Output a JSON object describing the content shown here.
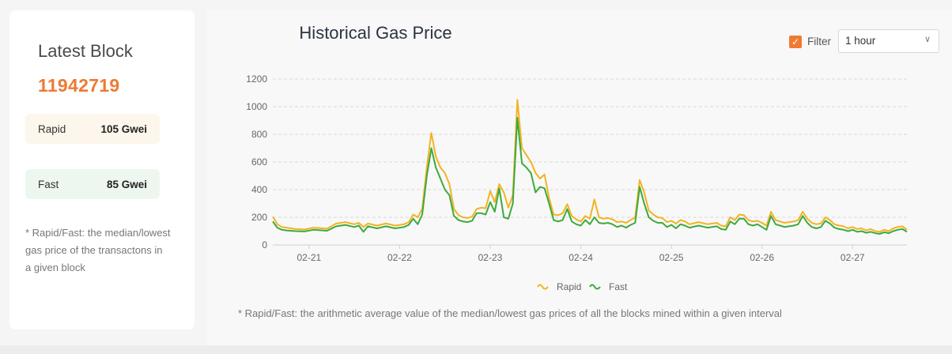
{
  "latest": {
    "title": "Latest Block",
    "block_number": "11942719",
    "rapid_label": "Rapid",
    "rapid_value": "105 Gwei",
    "fast_label": "Fast",
    "fast_value": "85 Gwei",
    "note": "* Rapid/Fast: the median/lowest gas price of the transactons in a given block"
  },
  "filter": {
    "label": "Filter",
    "checked": true,
    "selected": "1 hour"
  },
  "footnote": "* Rapid/Fast: the arithmetic average value of the median/lowest gas prices of all the blocks mined within a given interval",
  "colors": {
    "accent": "#ee7a33",
    "rapid": "#f2b322",
    "fast": "#3daa3d",
    "grid": "#d9d9d9"
  },
  "chart_data": {
    "type": "line",
    "title": "Historical Gas Price",
    "xlabel": "",
    "ylabel": "",
    "ylim": [
      0,
      1200
    ],
    "yticks": [
      0,
      200,
      400,
      600,
      800,
      1000,
      1200
    ],
    "xlim": [
      0,
      7.0
    ],
    "xticks": [
      {
        "x": 0.4,
        "label": "02-21"
      },
      {
        "x": 1.4,
        "label": "02-22"
      },
      {
        "x": 2.4,
        "label": "02-23"
      },
      {
        "x": 3.4,
        "label": "02-24"
      },
      {
        "x": 4.4,
        "label": "02-25"
      },
      {
        "x": 5.4,
        "label": "02-26"
      },
      {
        "x": 6.4,
        "label": "02-27"
      }
    ],
    "grid": true,
    "legend_position": "bottom",
    "series": [
      {
        "name": "Rapid",
        "points": [
          [
            0.0,
            205
          ],
          [
            0.05,
            150
          ],
          [
            0.1,
            130
          ],
          [
            0.15,
            125
          ],
          [
            0.25,
            115
          ],
          [
            0.35,
            112
          ],
          [
            0.45,
            125
          ],
          [
            0.55,
            120
          ],
          [
            0.6,
            118
          ],
          [
            0.7,
            155
          ],
          [
            0.8,
            165
          ],
          [
            0.9,
            150
          ],
          [
            0.95,
            160
          ],
          [
            1.0,
            130
          ],
          [
            1.05,
            155
          ],
          [
            1.15,
            140
          ],
          [
            1.25,
            155
          ],
          [
            1.35,
            140
          ],
          [
            1.45,
            150
          ],
          [
            1.5,
            165
          ],
          [
            1.55,
            220
          ],
          [
            1.6,
            200
          ],
          [
            1.65,
            260
          ],
          [
            1.7,
            560
          ],
          [
            1.75,
            810
          ],
          [
            1.8,
            640
          ],
          [
            1.85,
            560
          ],
          [
            1.9,
            520
          ],
          [
            1.95,
            440
          ],
          [
            2.0,
            260
          ],
          [
            2.05,
            215
          ],
          [
            2.1,
            200
          ],
          [
            2.15,
            195
          ],
          [
            2.2,
            205
          ],
          [
            2.25,
            260
          ],
          [
            2.3,
            270
          ],
          [
            2.35,
            265
          ],
          [
            2.4,
            390
          ],
          [
            2.45,
            310
          ],
          [
            2.5,
            440
          ],
          [
            2.55,
            380
          ],
          [
            2.6,
            270
          ],
          [
            2.65,
            360
          ],
          [
            2.7,
            1050
          ],
          [
            2.75,
            700
          ],
          [
            2.8,
            650
          ],
          [
            2.85,
            600
          ],
          [
            2.9,
            520
          ],
          [
            2.95,
            480
          ],
          [
            3.0,
            510
          ],
          [
            3.05,
            340
          ],
          [
            3.1,
            220
          ],
          [
            3.15,
            215
          ],
          [
            3.2,
            230
          ],
          [
            3.25,
            295
          ],
          [
            3.3,
            210
          ],
          [
            3.35,
            185
          ],
          [
            3.4,
            170
          ],
          [
            3.45,
            210
          ],
          [
            3.5,
            190
          ],
          [
            3.55,
            330
          ],
          [
            3.6,
            200
          ],
          [
            3.65,
            190
          ],
          [
            3.7,
            195
          ],
          [
            3.75,
            185
          ],
          [
            3.8,
            165
          ],
          [
            3.85,
            170
          ],
          [
            3.9,
            160
          ],
          [
            3.95,
            180
          ],
          [
            4.0,
            200
          ],
          [
            4.05,
            470
          ],
          [
            4.1,
            380
          ],
          [
            4.15,
            250
          ],
          [
            4.2,
            220
          ],
          [
            4.25,
            200
          ],
          [
            4.3,
            195
          ],
          [
            4.35,
            165
          ],
          [
            4.4,
            175
          ],
          [
            4.45,
            155
          ],
          [
            4.5,
            180
          ],
          [
            4.55,
            170
          ],
          [
            4.6,
            150
          ],
          [
            4.7,
            165
          ],
          [
            4.8,
            150
          ],
          [
            4.9,
            160
          ],
          [
            4.95,
            140
          ],
          [
            5.0,
            135
          ],
          [
            5.05,
            200
          ],
          [
            5.1,
            180
          ],
          [
            5.15,
            220
          ],
          [
            5.2,
            215
          ],
          [
            5.25,
            180
          ],
          [
            5.3,
            170
          ],
          [
            5.35,
            175
          ],
          [
            5.4,
            160
          ],
          [
            5.45,
            140
          ],
          [
            5.5,
            240
          ],
          [
            5.55,
            180
          ],
          [
            5.6,
            170
          ],
          [
            5.65,
            160
          ],
          [
            5.7,
            165
          ],
          [
            5.75,
            170
          ],
          [
            5.8,
            180
          ],
          [
            5.85,
            240
          ],
          [
            5.9,
            190
          ],
          [
            5.95,
            160
          ],
          [
            6.0,
            150
          ],
          [
            6.05,
            155
          ],
          [
            6.1,
            200
          ],
          [
            6.15,
            180
          ],
          [
            6.2,
            150
          ],
          [
            6.25,
            140
          ],
          [
            6.3,
            135
          ],
          [
            6.35,
            120
          ],
          [
            6.4,
            130
          ],
          [
            6.45,
            115
          ],
          [
            6.5,
            120
          ],
          [
            6.55,
            105
          ],
          [
            6.6,
            115
          ],
          [
            6.65,
            100
          ],
          [
            6.7,
            95
          ],
          [
            6.75,
            110
          ],
          [
            6.8,
            100
          ],
          [
            6.85,
            120
          ],
          [
            6.9,
            130
          ],
          [
            6.95,
            135
          ],
          [
            7.0,
            110
          ]
        ]
      },
      {
        "name": "Fast",
        "points": [
          [
            0.0,
            170
          ],
          [
            0.05,
            125
          ],
          [
            0.1,
            110
          ],
          [
            0.15,
            105
          ],
          [
            0.25,
            100
          ],
          [
            0.35,
            98
          ],
          [
            0.45,
            110
          ],
          [
            0.55,
            105
          ],
          [
            0.6,
            103
          ],
          [
            0.7,
            135
          ],
          [
            0.8,
            145
          ],
          [
            0.9,
            130
          ],
          [
            0.95,
            140
          ],
          [
            1.0,
            95
          ],
          [
            1.05,
            135
          ],
          [
            1.15,
            120
          ],
          [
            1.25,
            135
          ],
          [
            1.35,
            120
          ],
          [
            1.45,
            130
          ],
          [
            1.5,
            145
          ],
          [
            1.55,
            190
          ],
          [
            1.6,
            150
          ],
          [
            1.65,
            220
          ],
          [
            1.7,
            500
          ],
          [
            1.75,
            700
          ],
          [
            1.8,
            560
          ],
          [
            1.85,
            480
          ],
          [
            1.9,
            400
          ],
          [
            1.95,
            360
          ],
          [
            2.0,
            210
          ],
          [
            2.05,
            180
          ],
          [
            2.1,
            170
          ],
          [
            2.15,
            165
          ],
          [
            2.2,
            175
          ],
          [
            2.25,
            230
          ],
          [
            2.3,
            230
          ],
          [
            2.35,
            220
          ],
          [
            2.4,
            310
          ],
          [
            2.45,
            240
          ],
          [
            2.5,
            410
          ],
          [
            2.55,
            200
          ],
          [
            2.6,
            190
          ],
          [
            2.65,
            300
          ],
          [
            2.7,
            920
          ],
          [
            2.75,
            590
          ],
          [
            2.8,
            560
          ],
          [
            2.85,
            520
          ],
          [
            2.9,
            380
          ],
          [
            2.95,
            420
          ],
          [
            3.0,
            410
          ],
          [
            3.05,
            300
          ],
          [
            3.1,
            180
          ],
          [
            3.15,
            170
          ],
          [
            3.2,
            180
          ],
          [
            3.25,
            260
          ],
          [
            3.3,
            170
          ],
          [
            3.35,
            150
          ],
          [
            3.4,
            140
          ],
          [
            3.45,
            180
          ],
          [
            3.5,
            150
          ],
          [
            3.55,
            200
          ],
          [
            3.6,
            160
          ],
          [
            3.65,
            155
          ],
          [
            3.7,
            160
          ],
          [
            3.75,
            150
          ],
          [
            3.8,
            130
          ],
          [
            3.85,
            140
          ],
          [
            3.9,
            125
          ],
          [
            3.95,
            145
          ],
          [
            4.0,
            160
          ],
          [
            4.05,
            420
          ],
          [
            4.1,
            300
          ],
          [
            4.15,
            200
          ],
          [
            4.2,
            175
          ],
          [
            4.25,
            160
          ],
          [
            4.3,
            160
          ],
          [
            4.35,
            130
          ],
          [
            4.4,
            145
          ],
          [
            4.45,
            120
          ],
          [
            4.5,
            150
          ],
          [
            4.55,
            140
          ],
          [
            4.6,
            125
          ],
          [
            4.7,
            140
          ],
          [
            4.8,
            125
          ],
          [
            4.9,
            135
          ],
          [
            4.95,
            115
          ],
          [
            5.0,
            110
          ],
          [
            5.05,
            170
          ],
          [
            5.1,
            150
          ],
          [
            5.15,
            190
          ],
          [
            5.2,
            190
          ],
          [
            5.25,
            150
          ],
          [
            5.3,
            140
          ],
          [
            5.35,
            150
          ],
          [
            5.4,
            130
          ],
          [
            5.45,
            110
          ],
          [
            5.5,
            210
          ],
          [
            5.55,
            150
          ],
          [
            5.6,
            140
          ],
          [
            5.65,
            130
          ],
          [
            5.7,
            135
          ],
          [
            5.75,
            140
          ],
          [
            5.8,
            150
          ],
          [
            5.85,
            210
          ],
          [
            5.9,
            160
          ],
          [
            5.95,
            130
          ],
          [
            6.0,
            120
          ],
          [
            6.05,
            130
          ],
          [
            6.1,
            175
          ],
          [
            6.15,
            155
          ],
          [
            6.2,
            125
          ],
          [
            6.25,
            115
          ],
          [
            6.3,
            110
          ],
          [
            6.35,
            100
          ],
          [
            6.4,
            110
          ],
          [
            6.45,
            95
          ],
          [
            6.5,
            100
          ],
          [
            6.55,
            88
          ],
          [
            6.6,
            95
          ],
          [
            6.65,
            85
          ],
          [
            6.7,
            80
          ],
          [
            6.75,
            92
          ],
          [
            6.8,
            85
          ],
          [
            6.85,
            100
          ],
          [
            6.9,
            110
          ],
          [
            6.95,
            115
          ],
          [
            7.0,
            95
          ]
        ]
      }
    ]
  }
}
